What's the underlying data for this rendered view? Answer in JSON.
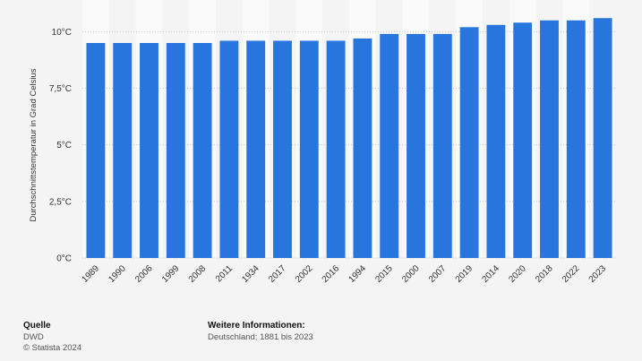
{
  "chart_data": {
    "type": "bar",
    "y_label": "Durchschnittstemperatur in Grad Celsius",
    "categories": [
      "1989",
      "1990",
      "2006",
      "1999",
      "2008",
      "2011",
      "1934",
      "2017",
      "2002",
      "2016",
      "1994",
      "2015",
      "2000",
      "2007",
      "2019",
      "2014",
      "2020",
      "2018",
      "2022",
      "2023"
    ],
    "values": [
      9.5,
      9.5,
      9.5,
      9.5,
      9.5,
      9.6,
      9.6,
      9.6,
      9.6,
      9.6,
      9.7,
      9.9,
      9.9,
      9.9,
      10.2,
      10.3,
      10.4,
      10.5,
      10.5,
      10.6
    ],
    "color": "#2876dd",
    "ylim": [
      0,
      11.4
    ],
    "yticks": [
      {
        "value": 0,
        "label": "0°C"
      },
      {
        "value": 2.5,
        "label": "2,5°C"
      },
      {
        "value": 5,
        "label": "5°C"
      },
      {
        "value": 7.5,
        "label": "7,5°C"
      },
      {
        "value": 10,
        "label": "10°C"
      }
    ],
    "grid": true
  },
  "footer": {
    "source_title": "Quelle",
    "source": "DWD",
    "copyright": "© Statista 2024",
    "info_title": "Weitere Informationen:",
    "info": "Deutschland; 1881 bis 2023"
  }
}
